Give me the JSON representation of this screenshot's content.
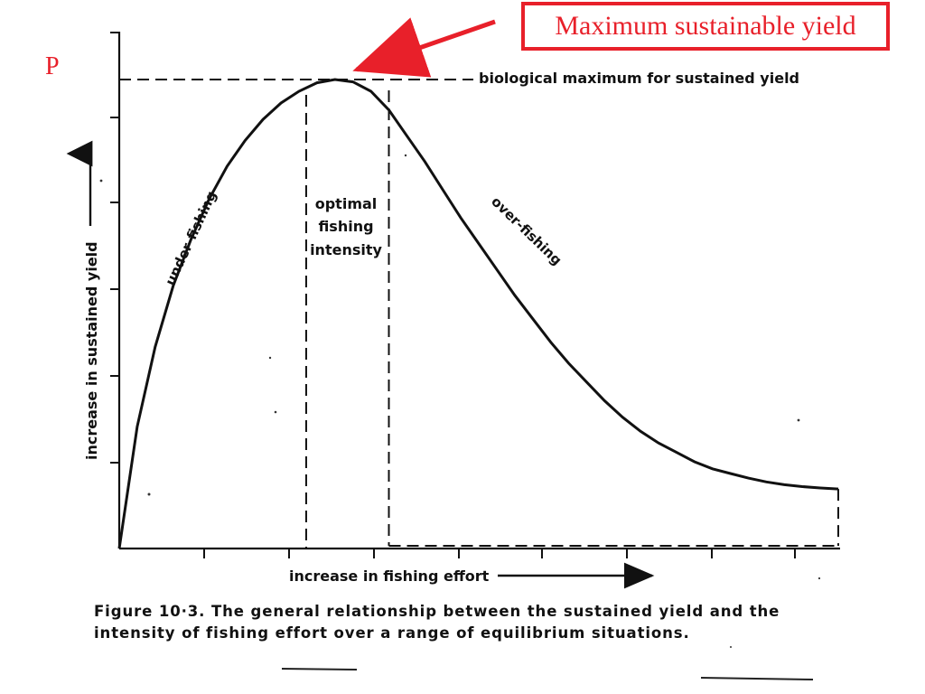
{
  "callout": {
    "letter": "P",
    "label": "Maximum sustainable yield",
    "color": "#e8202a"
  },
  "chart_data": {
    "type": "line",
    "title": "",
    "xlabel": "increase in fishing effort",
    "ylabel": "increase in sustained yield",
    "xlim": [
      0,
      10
    ],
    "ylim": [
      0,
      10
    ],
    "x_ticks_labeled": false,
    "y_ticks_labeled": false,
    "grid": false,
    "series": [
      {
        "x": [
          0,
          0.25,
          0.5,
          0.75,
          1,
          1.25,
          1.5,
          1.75,
          2,
          2.25,
          2.5,
          2.75,
          3,
          3.25,
          3.5,
          3.75,
          4,
          4.25,
          4.5,
          4.75,
          5,
          5.25,
          5.5,
          5.75,
          6,
          6.25,
          6.5,
          6.75,
          7,
          7.25,
          7.5,
          7.75,
          8,
          8.25,
          8.5,
          8.75,
          9,
          9.25,
          9.5,
          9.75,
          10
        ],
        "y": [
          0,
          2.6,
          4.3,
          5.6,
          6.6,
          7.45,
          8.15,
          8.7,
          9.15,
          9.5,
          9.75,
          9.93,
          10,
          9.95,
          9.75,
          9.35,
          8.8,
          8.25,
          7.65,
          7.05,
          6.5,
          5.95,
          5.4,
          4.9,
          4.4,
          3.95,
          3.55,
          3.15,
          2.8,
          2.5,
          2.25,
          2.05,
          1.85,
          1.7,
          1.6,
          1.5,
          1.42,
          1.36,
          1.32,
          1.29,
          1.27
        ]
      }
    ],
    "reference_lines": {
      "horizontal_max": {
        "y": 10,
        "style": "dashed",
        "label": "biological maximum for sustained yield"
      },
      "vertical_left": {
        "x": 2.6,
        "style": "dashed"
      },
      "vertical_right": {
        "x": 3.75,
        "style": "dashed"
      },
      "baseline_right": {
        "from_x": 3.75,
        "to_x": 10,
        "style": "dashed"
      },
      "right_edge": {
        "x": 10,
        "style": "dashed"
      }
    },
    "annotations": [
      {
        "text": "under-fishing",
        "region": "rising limb"
      },
      {
        "text": "optimal",
        "region": "between vertical lines"
      },
      {
        "text": "fishing",
        "region": "between vertical lines"
      },
      {
        "text": "intensity",
        "region": "between vertical lines"
      },
      {
        "text": "over-fishing",
        "region": "falling limb"
      }
    ],
    "caption": "Figure 10·3. The general relationship between the sustained yield and the intensity of fishing effort over a range of equilibrium situations."
  }
}
